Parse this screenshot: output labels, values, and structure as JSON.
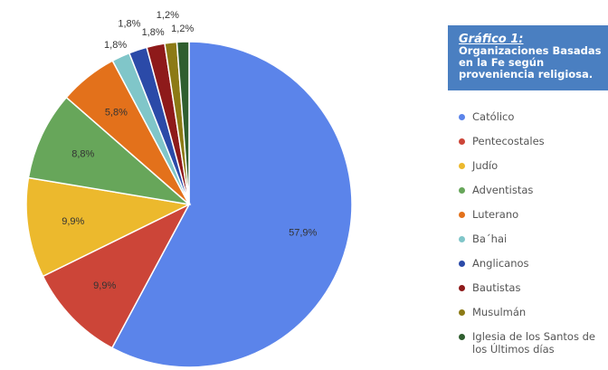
{
  "chart_data": {
    "type": "pie",
    "title": "Gráfico 1:",
    "subtitle": "Organizaciones Basadas en la Fe según proveniencia religiosa.",
    "categories": [
      "Católico",
      "Pentecostales",
      "Judío",
      "Adventistas",
      "Luterano",
      "Ba´hai",
      "Anglicanos",
      "Bautistas",
      "Musulmán",
      "Iglesia de los Santos de los Últimos días"
    ],
    "values": [
      57.9,
      9.9,
      9.9,
      8.8,
      5.8,
      1.8,
      1.8,
      1.8,
      1.2,
      1.2
    ],
    "value_labels": [
      "57,9%",
      "9,9%",
      "9,9%",
      "8,8%",
      "5,8%",
      "1,8%",
      "1,8%",
      "1,8%",
      "1,2%",
      "1,2%"
    ],
    "colors": [
      "#5b84ea",
      "#cc4538",
      "#ecb92d",
      "#67a65a",
      "#e3711b",
      "#80c6c9",
      "#2b4aa8",
      "#8e1a1a",
      "#8c7a15",
      "#2f5e2f"
    ],
    "legend": "right"
  }
}
